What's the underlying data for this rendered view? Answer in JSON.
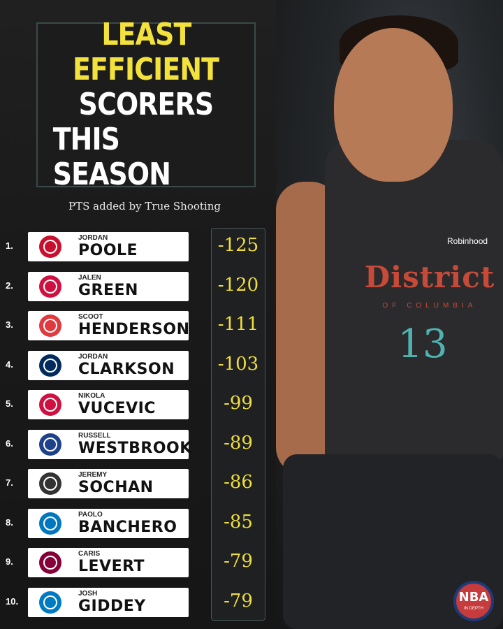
{
  "title": {
    "line1": "LEAST",
    "line2": "EFFICIENT",
    "line3": "SCORERS",
    "line4": "THIS SEASON"
  },
  "subtitle": "PTS added by True Shooting",
  "rows": [
    {
      "rank": "1.",
      "first": "JORDAN",
      "last": "POOLE",
      "value": "-125",
      "team_icon": "wizards-logo-icon",
      "color": "#c8102e"
    },
    {
      "rank": "2.",
      "first": "JALEN",
      "last": "GREEN",
      "value": "-120",
      "team_icon": "rockets-logo-icon",
      "color": "#ce1141"
    },
    {
      "rank": "3.",
      "first": "SCOOT",
      "last": "HENDERSON",
      "value": "-111",
      "team_icon": "trail-blazers-logo-icon",
      "color": "#e03a3e"
    },
    {
      "rank": "4.",
      "first": "JORDAN",
      "last": "CLARKSON",
      "value": "-103",
      "team_icon": "jazz-logo-icon",
      "color": "#002b5c"
    },
    {
      "rank": "5.",
      "first": "NIKOLA",
      "last": "VUCEVIC",
      "value": "-99",
      "team_icon": "bulls-logo-icon",
      "color": "#ce1141"
    },
    {
      "rank": "6.",
      "first": "RUSSELL",
      "last": "WESTBROOK",
      "value": "-89",
      "team_icon": "clippers-logo-icon",
      "color": "#1d428a"
    },
    {
      "rank": "7.",
      "first": "JEREMY",
      "last": "SOCHAN",
      "value": "-86",
      "team_icon": "spurs-logo-icon",
      "color": "#333333"
    },
    {
      "rank": "8.",
      "first": "PAOLO",
      "last": "BANCHERO",
      "value": "-85",
      "team_icon": "magic-logo-icon",
      "color": "#0077c0"
    },
    {
      "rank": "9.",
      "first": "CARIS",
      "last": "LEVERT",
      "value": "-79",
      "team_icon": "cavaliers-logo-icon",
      "color": "#860038"
    },
    {
      "rank": "10.",
      "first": "JOSH",
      "last": "GIDDEY",
      "value": "-79",
      "team_icon": "thunder-logo-icon",
      "color": "#007ac1"
    }
  ],
  "jersey": {
    "wordmark": "District",
    "sub": "OF COLUMBIA",
    "number": "13",
    "sponsor": "Robinhood"
  },
  "badge": {
    "text": "NBA",
    "sub": "IN DEPTH"
  },
  "colors": {
    "accent_yellow": "#f4e23c",
    "value_yellow": "#f1de3a",
    "background": "#141414"
  }
}
